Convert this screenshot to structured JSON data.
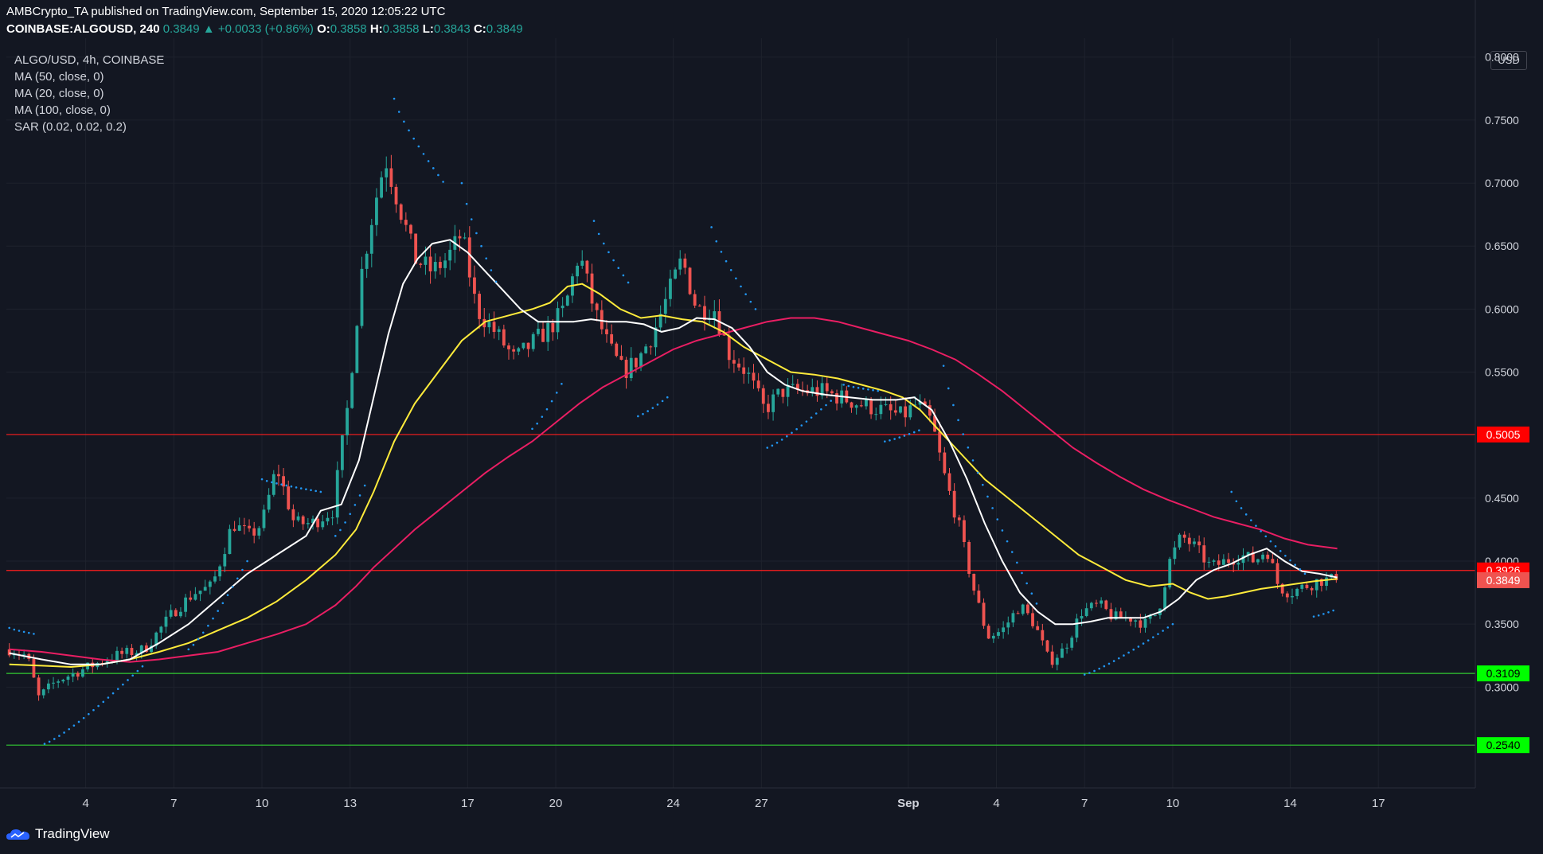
{
  "header": {
    "line1": "AMBCrypto_TA published on TradingView.com, September 15, 2020 12:05:22 UTC",
    "symbol_full": "COINBASE:ALGOUSD, 240",
    "last": "0.3849",
    "change": "+0.0033 (+0.86%)",
    "o_label": "O:",
    "o": "0.3858",
    "h_label": "H:",
    "h": "0.3858",
    "l_label": "L:",
    "l": "0.3843",
    "c_label": "C:",
    "c": "0.3849"
  },
  "indicators": {
    "title": "ALGO/USD, 4h, COINBASE",
    "ma50": "MA (50, close, 0)",
    "ma20": "MA (20, close, 0)",
    "ma100": "MA (100, close, 0)",
    "sar": "SAR (0.02, 0.02, 0.2)"
  },
  "currency_label": "USD",
  "brand": "TradingView",
  "chart_data": {
    "type": "candlestick",
    "title": "ALGO/USD, 4h, COINBASE",
    "ylim": [
      0.22,
      0.815
    ],
    "y_ticks": [
      "0.8000",
      "0.7500",
      "0.7000",
      "0.6500",
      "0.6000",
      "0.5500",
      "0.4500",
      "0.4000",
      "0.3500",
      "0.3000"
    ],
    "x_ticks": [
      {
        "label": "4",
        "day": 4
      },
      {
        "label": "7",
        "day": 7
      },
      {
        "label": "10",
        "day": 10
      },
      {
        "label": "13",
        "day": 13
      },
      {
        "label": "17",
        "day": 17
      },
      {
        "label": "20",
        "day": 20
      },
      {
        "label": "24",
        "day": 24
      },
      {
        "label": "27",
        "day": 27
      },
      {
        "label": "Sep",
        "day": 32
      },
      {
        "label": "4",
        "day": 35
      },
      {
        "label": "7",
        "day": 38
      },
      {
        "label": "10",
        "day": 41
      },
      {
        "label": "14",
        "day": 45
      },
      {
        "label": "17",
        "day": 48
      }
    ],
    "x_axis_note": "day index: 1 = Aug 1 2020, 32 = Sep 1 2020",
    "x_range_days": [
      1.3,
      51.3
    ],
    "horizontal_levels": [
      {
        "value": 0.5005,
        "label": "0.5005",
        "color": "#ff1e1e"
      },
      {
        "value": 0.3926,
        "label": "0.3926",
        "color": "#ff1e1e"
      },
      {
        "value": 0.3109,
        "label": "0.3109",
        "color": "#33cc33"
      },
      {
        "value": 0.254,
        "label": "0.2540",
        "color": "#33cc33"
      }
    ],
    "last_price": {
      "value": 0.3849,
      "label": "0.3849",
      "color": "#ef5350"
    },
    "close_anchors": [
      [
        1.4,
        0.33
      ],
      [
        2.0,
        0.325
      ],
      [
        2.4,
        0.292
      ],
      [
        3.0,
        0.305
      ],
      [
        4.0,
        0.315
      ],
      [
        5.0,
        0.325
      ],
      [
        6.0,
        0.33
      ],
      [
        7.0,
        0.36
      ],
      [
        7.7,
        0.375
      ],
      [
        8.3,
        0.38
      ],
      [
        9.0,
        0.43
      ],
      [
        9.6,
        0.42
      ],
      [
        10.0,
        0.43
      ],
      [
        10.5,
        0.475
      ],
      [
        11.1,
        0.43
      ],
      [
        11.7,
        0.43
      ],
      [
        12.4,
        0.44
      ],
      [
        12.9,
        0.52
      ],
      [
        13.4,
        0.63
      ],
      [
        13.8,
        0.68
      ],
      [
        14.2,
        0.72
      ],
      [
        14.7,
        0.68
      ],
      [
        15.2,
        0.64
      ],
      [
        15.8,
        0.63
      ],
      [
        16.3,
        0.64
      ],
      [
        16.8,
        0.66
      ],
      [
        17.3,
        0.6
      ],
      [
        18.0,
        0.58
      ],
      [
        18.6,
        0.56
      ],
      [
        19.3,
        0.575
      ],
      [
        19.8,
        0.585
      ],
      [
        20.3,
        0.6
      ],
      [
        20.8,
        0.645
      ],
      [
        21.3,
        0.6
      ],
      [
        21.8,
        0.57
      ],
      [
        22.3,
        0.55
      ],
      [
        22.8,
        0.56
      ],
      [
        23.3,
        0.58
      ],
      [
        23.8,
        0.61
      ],
      [
        24.3,
        0.64
      ],
      [
        24.8,
        0.6
      ],
      [
        25.4,
        0.6
      ],
      [
        25.9,
        0.565
      ],
      [
        26.5,
        0.55
      ],
      [
        27.1,
        0.52
      ],
      [
        27.7,
        0.535
      ],
      [
        28.3,
        0.535
      ],
      [
        29.0,
        0.535
      ],
      [
        29.7,
        0.53
      ],
      [
        30.3,
        0.525
      ],
      [
        31.1,
        0.52
      ],
      [
        31.8,
        0.515
      ],
      [
        32.3,
        0.525
      ],
      [
        32.8,
        0.51
      ],
      [
        33.2,
        0.47
      ],
      [
        33.7,
        0.43
      ],
      [
        34.2,
        0.38
      ],
      [
        34.7,
        0.34
      ],
      [
        35.2,
        0.345
      ],
      [
        35.8,
        0.365
      ],
      [
        36.3,
        0.35
      ],
      [
        36.8,
        0.32
      ],
      [
        37.3,
        0.33
      ],
      [
        37.9,
        0.36
      ],
      [
        38.5,
        0.365
      ],
      [
        39.0,
        0.355
      ],
      [
        39.6,
        0.355
      ],
      [
        40.1,
        0.35
      ],
      [
        40.5,
        0.36
      ],
      [
        40.9,
        0.4
      ],
      [
        41.3,
        0.42
      ],
      [
        41.8,
        0.41
      ],
      [
        42.3,
        0.395
      ],
      [
        42.8,
        0.4
      ],
      [
        43.3,
        0.405
      ],
      [
        43.8,
        0.4
      ],
      [
        44.2,
        0.41
      ],
      [
        44.6,
        0.38
      ],
      [
        45.0,
        0.375
      ],
      [
        45.5,
        0.38
      ],
      [
        46.0,
        0.385
      ],
      [
        46.6,
        0.3849
      ]
    ],
    "ma20": [
      [
        1.4,
        0.327
      ],
      [
        2.5,
        0.322
      ],
      [
        3.5,
        0.318
      ],
      [
        4.5,
        0.318
      ],
      [
        5.5,
        0.322
      ],
      [
        6.5,
        0.335
      ],
      [
        7.5,
        0.35
      ],
      [
        8.5,
        0.37
      ],
      [
        9.5,
        0.39
      ],
      [
        10.5,
        0.405
      ],
      [
        11.5,
        0.42
      ],
      [
        12.0,
        0.44
      ],
      [
        12.7,
        0.445
      ],
      [
        13.3,
        0.48
      ],
      [
        13.8,
        0.53
      ],
      [
        14.3,
        0.58
      ],
      [
        14.8,
        0.62
      ],
      [
        15.3,
        0.64
      ],
      [
        15.8,
        0.652
      ],
      [
        16.4,
        0.655
      ],
      [
        17.0,
        0.645
      ],
      [
        17.6,
        0.63
      ],
      [
        18.2,
        0.615
      ],
      [
        18.8,
        0.6
      ],
      [
        19.4,
        0.59
      ],
      [
        20.0,
        0.59
      ],
      [
        20.6,
        0.59
      ],
      [
        21.2,
        0.592
      ],
      [
        21.8,
        0.59
      ],
      [
        22.4,
        0.59
      ],
      [
        23.0,
        0.588
      ],
      [
        23.6,
        0.582
      ],
      [
        24.2,
        0.585
      ],
      [
        24.8,
        0.593
      ],
      [
        25.4,
        0.592
      ],
      [
        26.0,
        0.585
      ],
      [
        26.6,
        0.57
      ],
      [
        27.2,
        0.55
      ],
      [
        27.8,
        0.54
      ],
      [
        28.4,
        0.535
      ],
      [
        29.2,
        0.532
      ],
      [
        30.0,
        0.53
      ],
      [
        30.8,
        0.528
      ],
      [
        31.6,
        0.528
      ],
      [
        32.2,
        0.53
      ],
      [
        32.8,
        0.52
      ],
      [
        33.4,
        0.495
      ],
      [
        34.0,
        0.465
      ],
      [
        34.6,
        0.43
      ],
      [
        35.2,
        0.4
      ],
      [
        35.8,
        0.375
      ],
      [
        36.4,
        0.36
      ],
      [
        37.0,
        0.35
      ],
      [
        37.6,
        0.35
      ],
      [
        38.2,
        0.352
      ],
      [
        38.8,
        0.355
      ],
      [
        39.4,
        0.355
      ],
      [
        40.0,
        0.355
      ],
      [
        40.6,
        0.36
      ],
      [
        41.2,
        0.37
      ],
      [
        41.8,
        0.385
      ],
      [
        42.4,
        0.393
      ],
      [
        43.0,
        0.398
      ],
      [
        43.6,
        0.405
      ],
      [
        44.2,
        0.41
      ],
      [
        44.8,
        0.4
      ],
      [
        45.4,
        0.392
      ],
      [
        46.0,
        0.39
      ],
      [
        46.6,
        0.387
      ]
    ],
    "ma50": [
      [
        1.4,
        0.318
      ],
      [
        2.5,
        0.317
      ],
      [
        3.5,
        0.316
      ],
      [
        4.5,
        0.318
      ],
      [
        5.5,
        0.322
      ],
      [
        6.5,
        0.328
      ],
      [
        7.5,
        0.335
      ],
      [
        8.5,
        0.345
      ],
      [
        9.5,
        0.355
      ],
      [
        10.5,
        0.368
      ],
      [
        11.5,
        0.385
      ],
      [
        12.5,
        0.405
      ],
      [
        13.2,
        0.425
      ],
      [
        13.8,
        0.455
      ],
      [
        14.5,
        0.495
      ],
      [
        15.2,
        0.525
      ],
      [
        16.0,
        0.55
      ],
      [
        16.8,
        0.575
      ],
      [
        17.6,
        0.59
      ],
      [
        18.4,
        0.595
      ],
      [
        19.2,
        0.6
      ],
      [
        19.8,
        0.605
      ],
      [
        20.4,
        0.618
      ],
      [
        20.9,
        0.62
      ],
      [
        21.5,
        0.612
      ],
      [
        22.2,
        0.6
      ],
      [
        22.9,
        0.593
      ],
      [
        23.6,
        0.595
      ],
      [
        24.3,
        0.592
      ],
      [
        25.0,
        0.59
      ],
      [
        25.7,
        0.582
      ],
      [
        26.4,
        0.57
      ],
      [
        27.2,
        0.56
      ],
      [
        28.0,
        0.55
      ],
      [
        28.8,
        0.548
      ],
      [
        29.6,
        0.545
      ],
      [
        30.4,
        0.54
      ],
      [
        31.2,
        0.535
      ],
      [
        31.8,
        0.53
      ],
      [
        32.4,
        0.52
      ],
      [
        33.0,
        0.505
      ],
      [
        33.8,
        0.485
      ],
      [
        34.6,
        0.465
      ],
      [
        35.4,
        0.45
      ],
      [
        36.2,
        0.435
      ],
      [
        37.0,
        0.42
      ],
      [
        37.8,
        0.405
      ],
      [
        38.6,
        0.395
      ],
      [
        39.4,
        0.385
      ],
      [
        40.2,
        0.38
      ],
      [
        41.0,
        0.382
      ],
      [
        41.6,
        0.375
      ],
      [
        42.2,
        0.37
      ],
      [
        42.8,
        0.372
      ],
      [
        43.4,
        0.375
      ],
      [
        44.0,
        0.378
      ],
      [
        44.6,
        0.38
      ],
      [
        45.2,
        0.382
      ],
      [
        45.8,
        0.384
      ],
      [
        46.6,
        0.386
      ]
    ],
    "ma100": [
      [
        1.4,
        0.33
      ],
      [
        2.5,
        0.328
      ],
      [
        3.5,
        0.325
      ],
      [
        4.5,
        0.322
      ],
      [
        5.5,
        0.32
      ],
      [
        6.5,
        0.322
      ],
      [
        7.5,
        0.325
      ],
      [
        8.5,
        0.328
      ],
      [
        9.5,
        0.335
      ],
      [
        10.5,
        0.342
      ],
      [
        11.5,
        0.35
      ],
      [
        12.5,
        0.365
      ],
      [
        13.2,
        0.38
      ],
      [
        13.8,
        0.395
      ],
      [
        14.5,
        0.41
      ],
      [
        15.2,
        0.425
      ],
      [
        16.0,
        0.44
      ],
      [
        16.8,
        0.455
      ],
      [
        17.6,
        0.47
      ],
      [
        18.4,
        0.483
      ],
      [
        19.2,
        0.495
      ],
      [
        20.0,
        0.51
      ],
      [
        20.8,
        0.525
      ],
      [
        21.6,
        0.538
      ],
      [
        22.4,
        0.548
      ],
      [
        23.2,
        0.558
      ],
      [
        24.0,
        0.568
      ],
      [
        24.8,
        0.575
      ],
      [
        25.6,
        0.58
      ],
      [
        26.4,
        0.585
      ],
      [
        27.2,
        0.59
      ],
      [
        28.0,
        0.593
      ],
      [
        28.8,
        0.593
      ],
      [
        29.6,
        0.59
      ],
      [
        30.4,
        0.585
      ],
      [
        31.2,
        0.58
      ],
      [
        32.0,
        0.575
      ],
      [
        32.8,
        0.568
      ],
      [
        33.6,
        0.56
      ],
      [
        34.4,
        0.548
      ],
      [
        35.2,
        0.535
      ],
      [
        36.0,
        0.52
      ],
      [
        36.8,
        0.505
      ],
      [
        37.6,
        0.49
      ],
      [
        38.4,
        0.478
      ],
      [
        39.2,
        0.467
      ],
      [
        40.0,
        0.457
      ],
      [
        40.8,
        0.449
      ],
      [
        41.6,
        0.442
      ],
      [
        42.4,
        0.435
      ],
      [
        43.2,
        0.43
      ],
      [
        44.0,
        0.425
      ],
      [
        44.8,
        0.418
      ],
      [
        45.6,
        0.413
      ],
      [
        46.6,
        0.41
      ]
    ],
    "sar_segments": [
      {
        "side": "above",
        "from": [
          1.4,
          0.347
        ],
        "to": [
          2.3,
          0.342
        ]
      },
      {
        "side": "below",
        "from": [
          2.6,
          0.255
        ],
        "to": [
          6.0,
          0.318
        ]
      },
      {
        "side": "below",
        "from": [
          7.5,
          0.33
        ],
        "to": [
          9.5,
          0.4
        ]
      },
      {
        "side": "above",
        "from": [
          10.0,
          0.465
        ],
        "to": [
          12.0,
          0.455
        ]
      },
      {
        "side": "below",
        "from": [
          12.5,
          0.42
        ],
        "to": [
          13.5,
          0.46
        ]
      },
      {
        "side": "above",
        "from": [
          14.5,
          0.767
        ],
        "to": [
          16.2,
          0.7
        ]
      },
      {
        "side": "above",
        "from": [
          16.8,
          0.7
        ],
        "to": [
          18.0,
          0.62
        ]
      },
      {
        "side": "below",
        "from": [
          19.2,
          0.505
        ],
        "to": [
          20.3,
          0.545
        ]
      },
      {
        "side": "above",
        "from": [
          21.3,
          0.67
        ],
        "to": [
          22.5,
          0.62
        ]
      },
      {
        "side": "below",
        "from": [
          22.8,
          0.515
        ],
        "to": [
          23.8,
          0.53
        ]
      },
      {
        "side": "above",
        "from": [
          25.3,
          0.665
        ],
        "to": [
          26.8,
          0.6
        ]
      },
      {
        "side": "below",
        "from": [
          27.2,
          0.49
        ],
        "to": [
          29.5,
          0.53
        ]
      },
      {
        "side": "above",
        "from": [
          29.8,
          0.54
        ],
        "to": [
          31.0,
          0.535
        ]
      },
      {
        "side": "below",
        "from": [
          31.2,
          0.495
        ],
        "to": [
          32.5,
          0.505
        ]
      },
      {
        "side": "above",
        "from": [
          33.2,
          0.555
        ],
        "to": [
          36.5,
          0.36
        ]
      },
      {
        "side": "below",
        "from": [
          38.0,
          0.31
        ],
        "to": [
          41.0,
          0.35
        ]
      },
      {
        "side": "above",
        "from": [
          43.0,
          0.455
        ],
        "to": [
          45.5,
          0.39
        ]
      },
      {
        "side": "below",
        "from": [
          45.8,
          0.356
        ],
        "to": [
          46.6,
          0.362
        ]
      }
    ],
    "colors": {
      "up": "#26a69a",
      "down": "#ef5350",
      "ma20": "#ffffff",
      "ma50": "#ffeb3b",
      "ma100": "#e91e63",
      "sar": "#2196f3",
      "background": "#131722",
      "grid": "#1e222d"
    }
  }
}
